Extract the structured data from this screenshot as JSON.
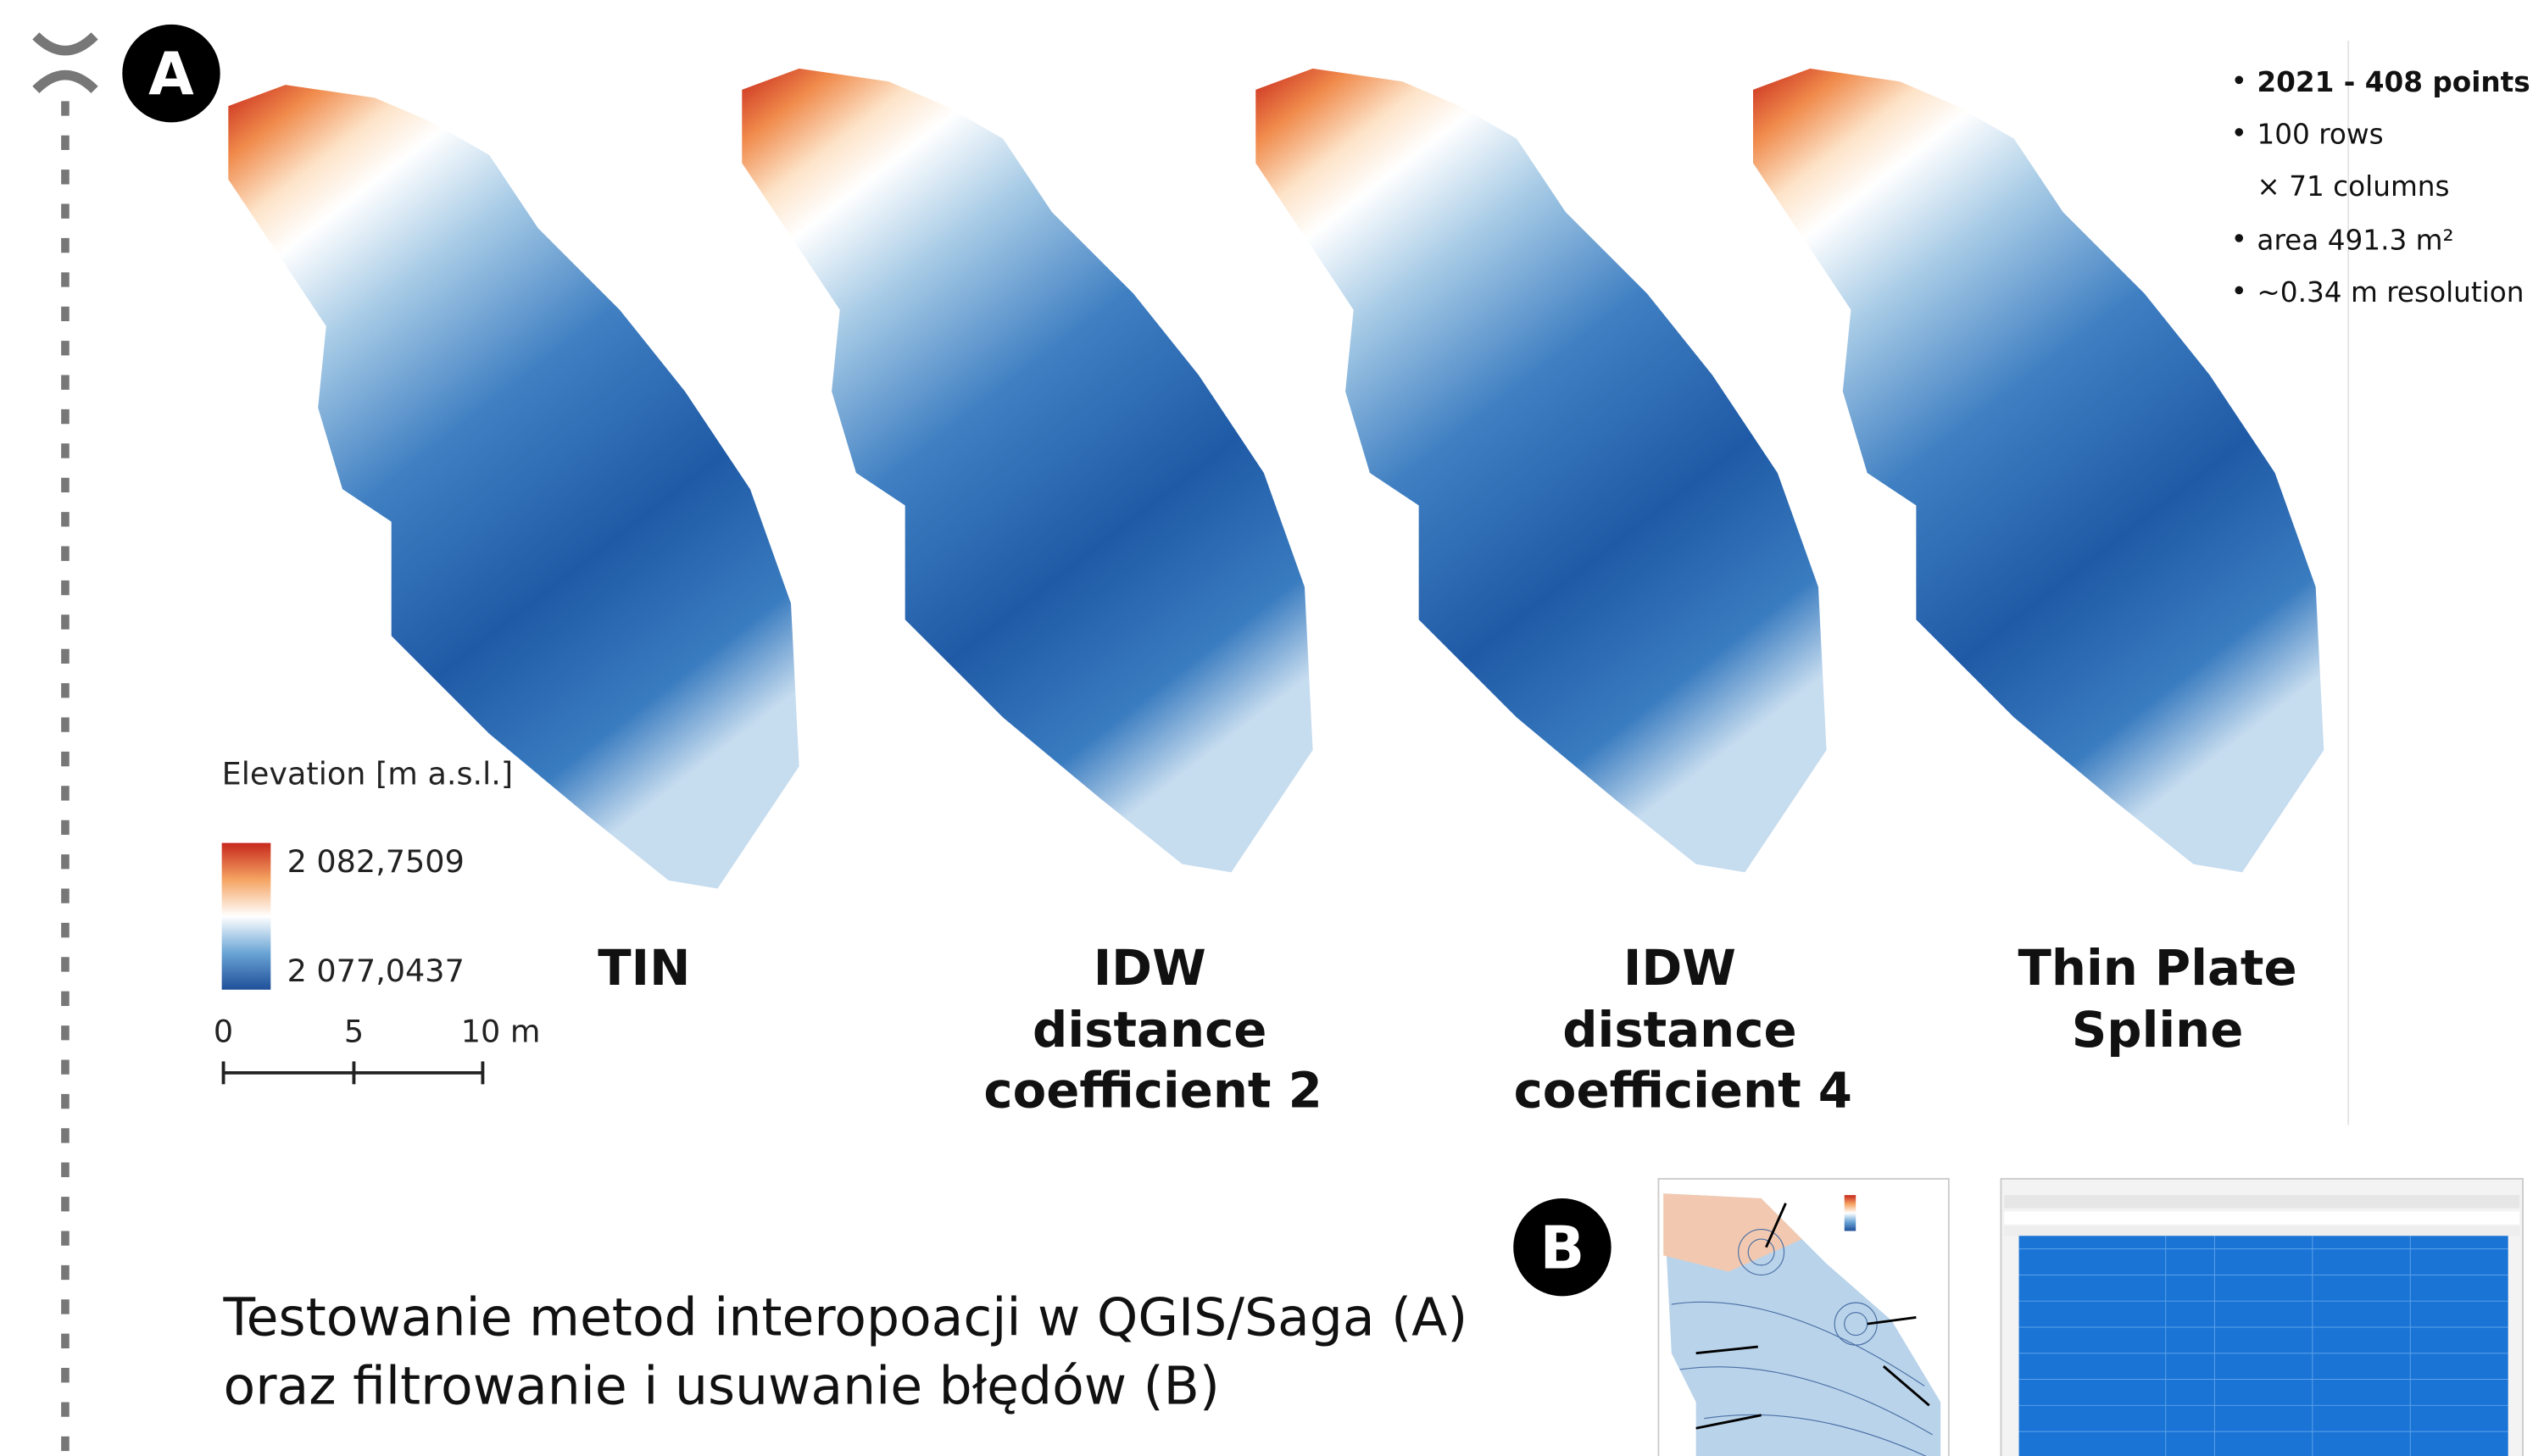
{
  "markers": {
    "a": "A",
    "b": "B"
  },
  "legend": {
    "title": "Elevation [m a.s.l.]",
    "max": "2 082,7509",
    "min": "2 077,0437"
  },
  "scale_bar": {
    "labels": [
      "0",
      "5",
      "10 m"
    ]
  },
  "panels": [
    {
      "lines": [
        "TIN"
      ]
    },
    {
      "lines": [
        "IDW",
        "distance",
        "coefficient 2"
      ]
    },
    {
      "lines": [
        "IDW",
        "distance",
        "coefficient 4"
      ]
    },
    {
      "lines": [
        "Thin Plate",
        "Spline"
      ]
    }
  ],
  "info": {
    "bullets": [
      "2021 - 408 points",
      "100 rows",
      "area 491.3 m²",
      "~0.34 m resolution"
    ],
    "continuation": "× 71 columns"
  },
  "caption": {
    "lines": [
      "Testowanie metod interopoacji w QGIS/Saga (A)",
      "oraz filtrowanie i usuwanie błędów (B)"
    ]
  }
}
